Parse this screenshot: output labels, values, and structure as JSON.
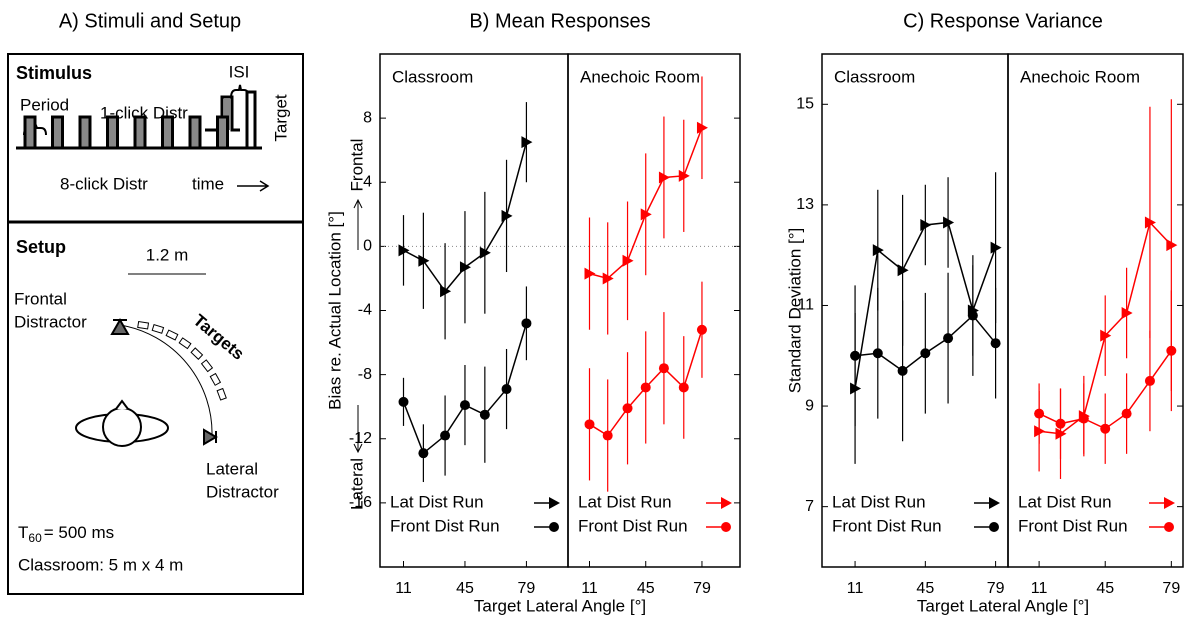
{
  "panel_a": {
    "title": "A) Stimuli and Setup",
    "stimulus": {
      "heading": "Stimulus",
      "isi": "ISI",
      "period": "Period",
      "one_click": "1-click Distr",
      "target": "Target",
      "eight_click": "8-click Distr",
      "time": "time"
    },
    "setup": {
      "heading": "Setup",
      "scale": "1.2 m",
      "frontal": [
        "Frontal",
        "Distractor"
      ],
      "targets": "Targets",
      "lateral": [
        "Lateral",
        "Distractor"
      ],
      "t60": {
        "symbol": "T",
        "subscript": "60",
        "value": "= 500 ms"
      },
      "room": "Classroom: 5 m x 4 m"
    }
  },
  "chart_data": [
    {
      "type": "line",
      "title": "B) Mean Responses",
      "xlabel": "Target Lateral Angle [°]",
      "ylabel": "Bias re. Actual Location [°]",
      "annotations": [
        "Frontal",
        "Lateral"
      ],
      "x": [
        11,
        22,
        34,
        45,
        56,
        68,
        79
      ],
      "xlim": [
        -2,
        102
      ],
      "xticks": [
        11,
        45,
        79
      ],
      "ylim": [
        -20,
        12
      ],
      "yticks": [
        -16,
        -12,
        -8,
        -4,
        0,
        4,
        8
      ],
      "hline": 0,
      "facets": [
        {
          "title": "Classroom",
          "series": [
            {
              "name": "Lat Dist Run",
              "marker": "triangle",
              "color": "#000000",
              "values": [
                -0.25,
                -0.9,
                -2.8,
                -1.3,
                -0.4,
                1.9,
                6.5
              ],
              "errors": [
                2.2,
                3.0,
                3.0,
                3.5,
                3.8,
                3.5,
                2.5
              ]
            },
            {
              "name": "Front Dist Run",
              "marker": "circle",
              "color": "#000000",
              "values": [
                -9.7,
                -12.9,
                -11.8,
                -9.9,
                -10.5,
                -8.9,
                -4.8
              ],
              "errors": [
                1.5,
                1.8,
                2.5,
                2.5,
                3.0,
                2.5,
                2.3
              ]
            }
          ]
        },
        {
          "title": "Anechoic Room",
          "series": [
            {
              "name": "Lat Dist Run",
              "marker": "triangle",
              "color": "#ff0000",
              "values": [
                -1.7,
                -2.0,
                -0.9,
                2.0,
                4.3,
                4.4,
                7.4
              ],
              "errors": [
                3.5,
                3.5,
                3.7,
                3.8,
                3.8,
                3.5,
                3.2
              ]
            },
            {
              "name": "Front Dist Run",
              "marker": "circle",
              "color": "#ff0000",
              "values": [
                -11.1,
                -11.8,
                -10.1,
                -8.8,
                -7.6,
                -8.8,
                -5.2
              ],
              "errors": [
                3.5,
                3.5,
                3.5,
                3.5,
                3.5,
                3.2,
                3.0
              ]
            }
          ]
        }
      ]
    },
    {
      "type": "line",
      "title": "C) Response Variance",
      "xlabel": "Target Lateral Angle [°]",
      "ylabel": "Standard Deviation [°]",
      "x": [
        11,
        22,
        34,
        45,
        56,
        68,
        79
      ],
      "xlim": [
        -5,
        85
      ],
      "xticks": [
        11,
        45,
        79
      ],
      "ylim": [
        5.8,
        16
      ],
      "yticks": [
        7,
        9,
        11,
        13,
        15
      ],
      "facets": [
        {
          "title": "Classroom",
          "series": [
            {
              "name": "Lat Dist Run",
              "marker": "triangle",
              "color": "#000000",
              "values": [
                9.35,
                12.1,
                11.7,
                12.6,
                12.65,
                10.9,
                12.15
              ],
              "errors": [
                1.5,
                1.2,
                1.5,
                0.8,
                0.9,
                0.9,
                1.5
              ]
            },
            {
              "name": "Front Dist Run",
              "marker": "circle",
              "color": "#000000",
              "values": [
                10.0,
                10.05,
                9.7,
                10.05,
                10.35,
                10.8,
                10.25
              ],
              "errors": [
                1.4,
                1.3,
                1.4,
                1.2,
                1.3,
                1.2,
                1.1
              ]
            }
          ]
        },
        {
          "title": "Anechoic Room",
          "series": [
            {
              "name": "Lat Dist Run",
              "marker": "triangle",
              "color": "#ff0000",
              "values": [
                8.5,
                8.45,
                8.8,
                10.4,
                10.85,
                12.65,
                12.2
              ],
              "errors": [
                0.8,
                0.9,
                0.8,
                0.8,
                0.9,
                2.3,
                2.9
              ]
            },
            {
              "name": "Front Dist Run",
              "marker": "circle",
              "color": "#ff0000",
              "values": [
                8.85,
                8.65,
                8.75,
                8.55,
                8.85,
                9.5,
                10.1
              ],
              "errors": [
                0.6,
                0.7,
                0.7,
                0.7,
                0.8,
                1.0,
                1.2
              ]
            }
          ]
        }
      ]
    }
  ]
}
